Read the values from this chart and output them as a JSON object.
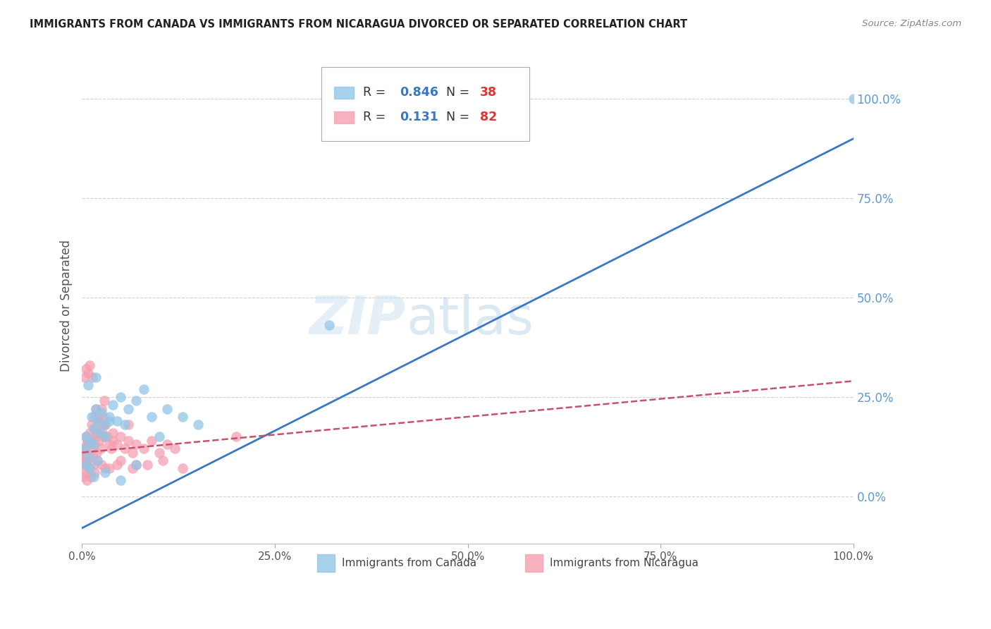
{
  "title": "IMMIGRANTS FROM CANADA VS IMMIGRANTS FROM NICARAGUA DIVORCED OR SEPARATED CORRELATION CHART",
  "source": "Source: ZipAtlas.com",
  "ylabel": "Divorced or Separated",
  "canada_color": "#93C6E7",
  "nicaragua_color": "#F4A0B0",
  "canada_line_color": "#3878C5",
  "nicaragua_line_color": "#C8506A",
  "canada_R": 0.846,
  "canada_N": 38,
  "nicaragua_R": 0.131,
  "nicaragua_N": 82,
  "right_tick_color": "#5B9BD5",
  "background_color": "#ffffff",
  "grid_color": "#d0d0d0",
  "title_color": "#222222",
  "canada_trendline_x": [
    0,
    100
  ],
  "canada_trendline_y": [
    -8,
    90
  ],
  "nicaragua_trendline_x": [
    0,
    100
  ],
  "nicaragua_trendline_y": [
    11,
    29
  ],
  "canada_scatter_x": [
    0.3,
    0.5,
    0.8,
    1.0,
    1.2,
    1.4,
    1.5,
    1.8,
    2.0,
    2.2,
    2.5,
    2.8,
    3.0,
    3.5,
    4.0,
    4.5,
    5.0,
    5.5,
    6.0,
    7.0,
    8.0,
    9.0,
    10.0,
    11.0,
    13.0,
    15.0,
    0.5,
    1.0,
    1.5,
    2.0,
    3.0,
    5.0,
    7.0,
    32.0,
    0.8,
    1.8,
    3.5,
    100.0
  ],
  "canada_scatter_y": [
    12.0,
    15.0,
    10.0,
    14.0,
    20.0,
    13.0,
    17.0,
    22.0,
    19.0,
    16.0,
    21.0,
    18.0,
    15.0,
    20.0,
    23.0,
    19.0,
    25.0,
    18.0,
    22.0,
    24.0,
    27.0,
    20.0,
    15.0,
    22.0,
    20.0,
    18.0,
    8.0,
    7.0,
    5.0,
    9.0,
    6.0,
    4.0,
    8.0,
    43.0,
    28.0,
    30.0,
    19.0,
    100.0
  ],
  "nicaragua_scatter_x": [
    0.1,
    0.15,
    0.2,
    0.25,
    0.3,
    0.35,
    0.4,
    0.45,
    0.5,
    0.55,
    0.6,
    0.7,
    0.8,
    0.9,
    1.0,
    1.1,
    1.2,
    1.3,
    1.4,
    1.5,
    1.6,
    1.7,
    1.8,
    1.9,
    2.0,
    2.1,
    2.2,
    2.3,
    2.4,
    2.5,
    2.6,
    2.7,
    2.8,
    2.9,
    3.0,
    3.2,
    3.5,
    3.8,
    4.0,
    4.5,
    5.0,
    5.5,
    6.0,
    6.5,
    7.0,
    8.0,
    9.0,
    10.0,
    11.0,
    12.0,
    0.3,
    0.5,
    0.8,
    1.0,
    1.3,
    1.8,
    2.2,
    3.0,
    4.0,
    6.0,
    0.2,
    0.4,
    0.6,
    0.9,
    1.1,
    1.6,
    2.5,
    3.5,
    5.0,
    7.0,
    0.3,
    0.6,
    1.0,
    1.5,
    2.0,
    3.0,
    4.5,
    6.5,
    8.5,
    10.5,
    13.0,
    20.0
  ],
  "nicaragua_scatter_y": [
    10.0,
    9.0,
    8.5,
    11.0,
    12.0,
    10.5,
    9.0,
    11.5,
    15.0,
    13.0,
    11.0,
    14.0,
    13.0,
    10.0,
    16.0,
    12.0,
    18.0,
    14.0,
    10.0,
    20.0,
    13.0,
    17.0,
    15.0,
    11.0,
    16.0,
    19.0,
    14.0,
    18.0,
    12.0,
    22.0,
    16.0,
    20.0,
    15.0,
    24.0,
    18.0,
    15.0,
    13.0,
    12.0,
    14.0,
    13.0,
    15.0,
    12.0,
    14.0,
    11.0,
    13.0,
    12.0,
    14.0,
    11.0,
    13.0,
    12.0,
    30.0,
    32.0,
    31.0,
    33.0,
    30.0,
    22.0,
    20.0,
    18.0,
    16.0,
    18.0,
    5.0,
    6.0,
    4.0,
    7.0,
    5.0,
    6.0,
    8.0,
    7.0,
    9.0,
    8.0,
    8.0,
    9.0,
    7.0,
    8.0,
    9.0,
    7.0,
    8.0,
    7.0,
    8.0,
    9.0,
    7.0,
    15.0
  ],
  "xlim": [
    0,
    100
  ],
  "ylim": [
    -12,
    108
  ],
  "yticks": [
    0,
    25,
    50,
    75,
    100
  ],
  "xticks": [
    0,
    25,
    50,
    75,
    100
  ]
}
